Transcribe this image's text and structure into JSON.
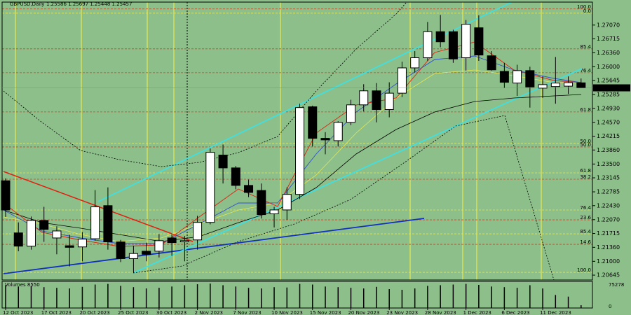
{
  "chart_data": {
    "type": "candlestick",
    "title": "GBPUSD,Daily",
    "subtitle": "1.25586 1.25697 1.25448 1.25457",
    "background": "#8dbf8a",
    "up_color": "#ffffff",
    "down_color": "#000000",
    "categories": [
      "12 Oct 2023",
      null,
      null,
      "17 Oct 2023",
      null,
      null,
      "20 Oct 2023",
      null,
      null,
      "25 Oct 2023",
      null,
      null,
      "30 Oct 2023",
      null,
      null,
      "2 Nov 2023",
      null,
      null,
      "7 Nov 2023",
      null,
      null,
      "10 Nov 2023",
      null,
      null,
      "15 Nov 2023",
      null,
      null,
      "20 Nov 2023",
      null,
      null,
      "23 Nov 2023",
      null,
      null,
      "28 Nov 2023",
      null,
      null,
      "1 Dec 2023",
      null,
      null,
      "6 Dec 2023",
      null,
      null,
      "11 Dec 2023",
      null,
      null,
      null
    ],
    "open": [
      1.2307,
      1.2173,
      1.2139,
      1.2205,
      1.216,
      1.214,
      1.2137,
      1.2158,
      1.2243,
      1.215,
      1.2107,
      1.2126,
      1.2126,
      1.216,
      1.215,
      1.2155,
      1.22,
      1.2373,
      1.234,
      1.2295,
      1.2282,
      1.2222,
      1.2232,
      1.2272,
      1.2497,
      1.2416,
      1.241,
      1.2457,
      1.2502,
      1.2538,
      1.249,
      1.2532,
      1.2597,
      1.2623,
      1.269,
      1.269,
      1.2623,
      1.27,
      1.2628,
      1.2588,
      1.2558,
      1.259,
      1.2545,
      1.2549,
      1.255,
      1.25586
    ],
    "high": [
      1.2313,
      1.22,
      1.2215,
      1.224,
      1.219,
      1.2168,
      1.2175,
      1.2283,
      1.229,
      1.2155,
      1.214,
      1.2148,
      1.217,
      1.217,
      1.2165,
      1.2217,
      1.239,
      1.24,
      1.2345,
      1.231,
      1.23,
      1.224,
      1.229,
      1.2505,
      1.25,
      1.2432,
      1.246,
      1.2515,
      1.2555,
      1.2558,
      1.256,
      1.2613,
      1.264,
      1.2715,
      1.2733,
      1.2695,
      1.272,
      1.2732,
      1.264,
      1.261,
      1.2605,
      1.26,
      1.2575,
      1.2625,
      1.2575,
      1.25697
    ],
    "low": [
      1.2214,
      1.2126,
      1.213,
      1.215,
      1.2118,
      1.2087,
      1.21,
      1.2153,
      1.213,
      1.2098,
      1.207,
      1.21,
      1.211,
      1.2114,
      1.21,
      1.213,
      1.2195,
      1.23,
      1.2285,
      1.2265,
      1.221,
      1.2187,
      1.2207,
      1.226,
      1.2395,
      1.2375,
      1.2395,
      1.245,
      1.2485,
      1.2457,
      1.247,
      1.2522,
      1.2585,
      1.2615,
      1.265,
      1.261,
      1.259,
      1.2615,
      1.259,
      1.2545,
      1.2525,
      1.2495,
      1.252,
      1.2505,
      1.253,
      1.25448
    ],
    "close": [
      1.2232,
      1.2139,
      1.2205,
      1.2182,
      1.2178,
      1.2136,
      1.2157,
      1.224,
      1.215,
      1.2107,
      1.212,
      1.2118,
      1.2153,
      1.2148,
      1.2153,
      1.22,
      1.238,
      1.234,
      1.2295,
      1.2277,
      1.222,
      1.2232,
      1.2272,
      1.2495,
      1.2416,
      1.2412,
      1.2457,
      1.2502,
      1.2538,
      1.249,
      1.2532,
      1.2597,
      1.2623,
      1.269,
      1.2664,
      1.262,
      1.2709,
      1.263,
      1.2592,
      1.256,
      1.259,
      1.2548,
      1.2554,
      1.2558,
      1.2559,
      1.25457
    ],
    "volume": [
      70000,
      66000,
      68000,
      64000,
      62000,
      60000,
      65000,
      72000,
      74000,
      68000,
      64000,
      60000,
      62000,
      66000,
      70000,
      73000,
      75000,
      70000,
      66000,
      62000,
      60000,
      64000,
      63000,
      74000,
      72000,
      66000,
      64000,
      62000,
      60000,
      65000,
      58000,
      56000,
      60000,
      68000,
      70000,
      72000,
      74000,
      71000,
      66000,
      64000,
      62000,
      70000,
      60000,
      40000,
      35000,
      8550
    ],
    "volume_label": "Volumes 8550",
    "vlim": [
      0,
      75278
    ],
    "vticks": [
      0,
      75278
    ],
    "ylim": [
      1.2052,
      1.2766
    ],
    "yticks": [
      {
        "value": 1.2707,
        "label": "1.27070"
      },
      {
        "value": 1.26715,
        "label": "1.26715"
      },
      {
        "value": 1.2636,
        "label": "1.26360"
      },
      {
        "value": 1.26,
        "label": "1.26000"
      },
      {
        "value": 1.25645,
        "label": "1.25645"
      },
      {
        "value": 1.25285,
        "label": "1.25285"
      },
      {
        "value": 1.2493,
        "label": "1.24930"
      },
      {
        "value": 1.2457,
        "label": "1.24570"
      },
      {
        "value": 1.24215,
        "label": "1.24215"
      },
      {
        "value": 1.2386,
        "label": "1.23860"
      },
      {
        "value": 1.235,
        "label": "1.23500"
      },
      {
        "value": 1.23145,
        "label": "1.23145"
      },
      {
        "value": 1.22785,
        "label": "1.22785"
      },
      {
        "value": 1.2243,
        "label": "1.22430"
      },
      {
        "value": 1.2207,
        "label": "1.22070"
      },
      {
        "value": 1.21715,
        "label": "1.21715"
      },
      {
        "value": 1.2136,
        "label": "1.21360"
      },
      {
        "value": 1.21,
        "label": "1.21000"
      },
      {
        "value": 1.20645,
        "label": "1.20645"
      }
    ],
    "levels": [
      {
        "label": "100.0",
        "price": 1.27484,
        "color": "#d04020"
      },
      {
        "label": "0.0",
        "price": 1.27376,
        "color": "#e8e850"
      },
      {
        "label": "85.4",
        "price": 1.26458,
        "color": "#d04020"
      },
      {
        "label": "76.4",
        "price": 1.25846,
        "color": "#d04020"
      },
      {
        "label": "61.8",
        "price": 1.24838,
        "color": "#d04020"
      },
      {
        "label": "50.0",
        "price": 1.24028,
        "color": "#e8e850"
      },
      {
        "label": "50.0",
        "price": 1.23938,
        "color": "#d04020"
      },
      {
        "label": "61.8",
        "price": 1.23272,
        "color": "#e8e850"
      },
      {
        "label": "38.2",
        "price": 1.2311,
        "color": "#d04020"
      },
      {
        "label": "76.4",
        "price": 1.22318,
        "color": "#e8e850"
      },
      {
        "label": "23.6",
        "price": 1.22066,
        "color": "#d04020"
      },
      {
        "label": "85.4",
        "price": 1.21706,
        "color": "#e8e850"
      },
      {
        "label": "14.6",
        "price": 1.21436,
        "color": "#d04020"
      },
      {
        "label": "100.0",
        "price": 1.20717,
        "color": "#e8e850"
      }
    ]
  }
}
